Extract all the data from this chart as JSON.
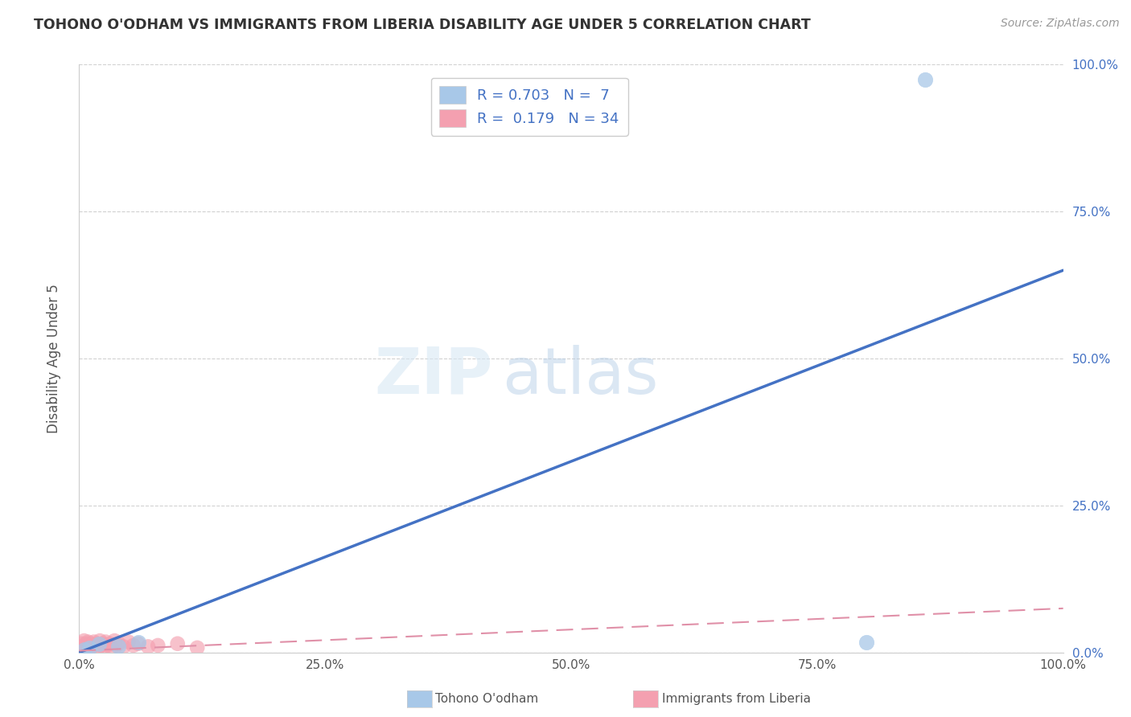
{
  "title": "TOHONO O'ODHAM VS IMMIGRANTS FROM LIBERIA DISABILITY AGE UNDER 5 CORRELATION CHART",
  "source": "Source: ZipAtlas.com",
  "ylabel": "Disability Age Under 5",
  "watermark_zip": "ZIP",
  "watermark_atlas": "atlas",
  "xlim": [
    0.0,
    1.0
  ],
  "ylim": [
    0.0,
    1.0
  ],
  "xtick_labels": [
    "0.0%",
    "25.0%",
    "50.0%",
    "75.0%",
    "100.0%"
  ],
  "xtick_vals": [
    0.0,
    0.25,
    0.5,
    0.75,
    1.0
  ],
  "ytick_labels_right": [
    "100.0%",
    "75.0%",
    "50.0%",
    "25.0%",
    "0.0%"
  ],
  "ytick_vals": [
    1.0,
    0.75,
    0.5,
    0.25,
    0.0
  ],
  "blue_R": 0.703,
  "blue_N": 7,
  "pink_R": 0.179,
  "pink_N": 34,
  "blue_line_x": [
    0.0,
    1.0
  ],
  "blue_line_y": [
    0.0,
    0.65
  ],
  "pink_line_x": [
    0.0,
    1.0
  ],
  "pink_line_y": [
    0.003,
    0.075
  ],
  "blue_scatter_x": [
    0.005,
    0.01,
    0.02,
    0.04,
    0.06,
    0.86,
    0.8
  ],
  "blue_scatter_y": [
    0.005,
    0.008,
    0.015,
    0.01,
    0.018,
    0.975,
    0.018
  ],
  "pink_scatter_x": [
    0.001,
    0.002,
    0.003,
    0.005,
    0.006,
    0.007,
    0.008,
    0.009,
    0.01,
    0.011,
    0.013,
    0.015,
    0.016,
    0.018,
    0.019,
    0.021,
    0.022,
    0.024,
    0.025,
    0.027,
    0.029,
    0.031,
    0.033,
    0.036,
    0.038,
    0.04,
    0.045,
    0.05,
    0.055,
    0.06,
    0.07,
    0.08,
    0.1,
    0.12
  ],
  "pink_scatter_y": [
    0.01,
    0.015,
    0.008,
    0.02,
    0.01,
    0.015,
    0.008,
    0.018,
    0.012,
    0.015,
    0.01,
    0.018,
    0.012,
    0.015,
    0.008,
    0.02,
    0.012,
    0.015,
    0.008,
    0.018,
    0.012,
    0.015,
    0.008,
    0.02,
    0.012,
    0.015,
    0.01,
    0.018,
    0.012,
    0.015,
    0.01,
    0.012,
    0.015,
    0.008
  ],
  "blue_scatter_color": "#a8c8e8",
  "pink_scatter_color": "#f4a0b0",
  "blue_line_color": "#4472c4",
  "pink_line_color": "#e090a8",
  "legend_label_blue": "Tohono O'odham",
  "legend_label_pink": "Immigrants from Liberia",
  "title_color": "#333333",
  "axis_color": "#cccccc",
  "right_tick_color": "#4472c4",
  "grid_color": "#cccccc",
  "background_color": "#ffffff"
}
